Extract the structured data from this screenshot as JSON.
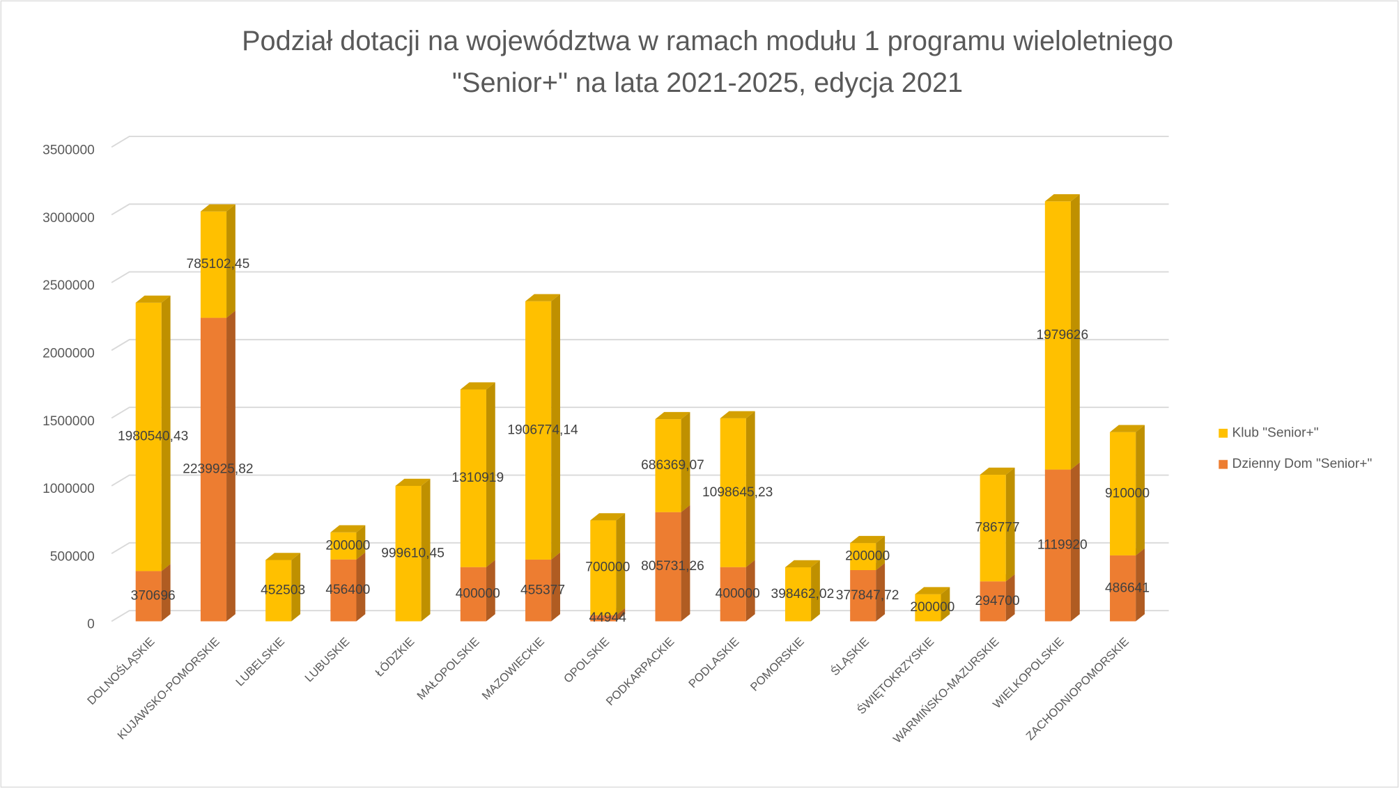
{
  "chart_data": {
    "type": "bar3d_stacked",
    "title": [
      "Podział dotacji na województwa w ramach modułu 1 programu wieloletniego",
      "\"Senior+\" na lata 2021-2025, edycja 2021"
    ],
    "categories": [
      "DOLNOŚLĄSKIE",
      "KUJAWSKO-POMORSKIE",
      "LUBELSKIE",
      "LUBUSKIE",
      "ŁÓDZKIE",
      "MAŁOPOLSKIE",
      "MAZOWIECKIE",
      "OPOLSKIE",
      "PODKARPACKIE",
      "PODLASKIE",
      "POMORSKIE",
      "ŚLĄSKIE",
      "ŚWIĘTOKRZYSKIE",
      "WARMIŃSKO-MAZURSKIE",
      "WIELKOPOLSKIE",
      "ZACHODNIOPOMORSKIE"
    ],
    "series": [
      {
        "name": "Dzienny Dom \"Senior+\"",
        "color": "#ED7D31",
        "side": "#B05C22",
        "top": "#F29A5C",
        "values": [
          370696,
          2239925.82,
          null,
          456400,
          null,
          400000,
          455377,
          44944,
          805731.26,
          400000,
          null,
          377847.72,
          null,
          294700,
          1119920,
          486641
        ],
        "value_labels": [
          "370696",
          "2239925,82",
          null,
          "456400",
          null,
          "400000",
          "455377",
          "44944",
          "805731,26",
          "400000",
          null,
          "377847,72",
          null,
          "294700",
          "1119920",
          "486641"
        ]
      },
      {
        "name": "Klub \"Senior+\"",
        "color": "#FFC000",
        "side": "#BF9000",
        "top": "#D4A000",
        "values": [
          1980540.43,
          785102.45,
          452503,
          200000,
          999610.45,
          1310919,
          1906774.14,
          700000,
          686369.07,
          1098645.23,
          398462.02,
          200000,
          200000,
          786777,
          1979626,
          910000
        ],
        "value_labels": [
          "1980540,43",
          "785102,45",
          "452503",
          "200000",
          "999610,45",
          "1310919",
          "1906774,14",
          "700000",
          "686369,07",
          "1098645,23",
          "398462,02",
          "200000",
          "200000",
          "786777",
          "1979626",
          "910000"
        ]
      }
    ],
    "ylim": [
      0,
      3500000
    ],
    "yticks": [
      0,
      500000,
      1000000,
      1500000,
      2000000,
      2500000,
      3000000,
      3500000
    ],
    "grid": true,
    "legend": "right"
  }
}
